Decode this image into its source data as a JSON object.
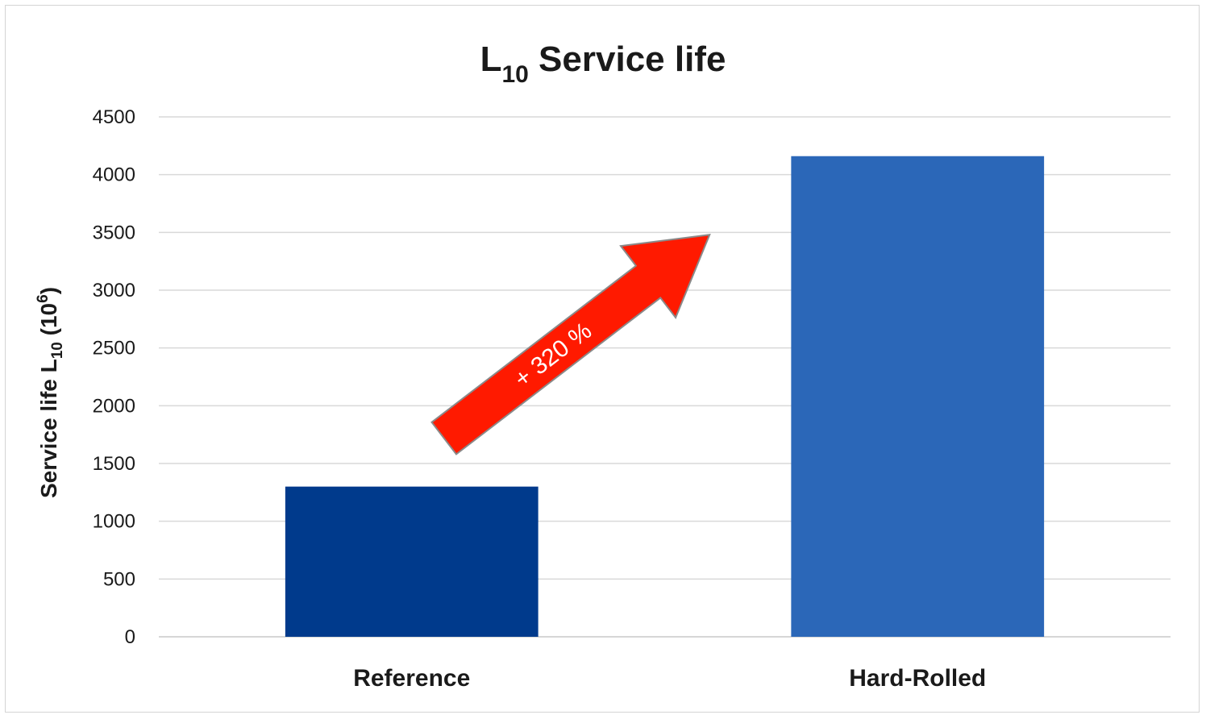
{
  "chart_data": {
    "type": "bar",
    "title": {
      "main": "L",
      "sub": "10",
      "rest": " Service life"
    },
    "ylabel": {
      "pre": "Service life  L",
      "sub": "10",
      "mid": " (10",
      "sup": "6",
      "post": ")"
    },
    "xlabel": "",
    "categories": [
      "Reference",
      "Hard-Rolled"
    ],
    "values": [
      1300,
      4160
    ],
    "colors": [
      "#003a8c",
      "#2b67b8"
    ],
    "ylim": [
      0,
      4500
    ],
    "yticks": [
      0,
      500,
      1000,
      1500,
      2000,
      2500,
      3000,
      3500,
      4000,
      4500
    ],
    "ytick_labels": [
      "0",
      "500",
      "1000",
      "1500",
      "2000",
      "2500",
      "3000",
      "3500",
      "4000",
      "4500"
    ],
    "grid": true,
    "legend": "none",
    "annotation": {
      "text": "+ 320 %",
      "shape": "arrow",
      "color": "#ff1a00",
      "from_category": "Reference",
      "to_category": "Hard-Rolled"
    }
  }
}
